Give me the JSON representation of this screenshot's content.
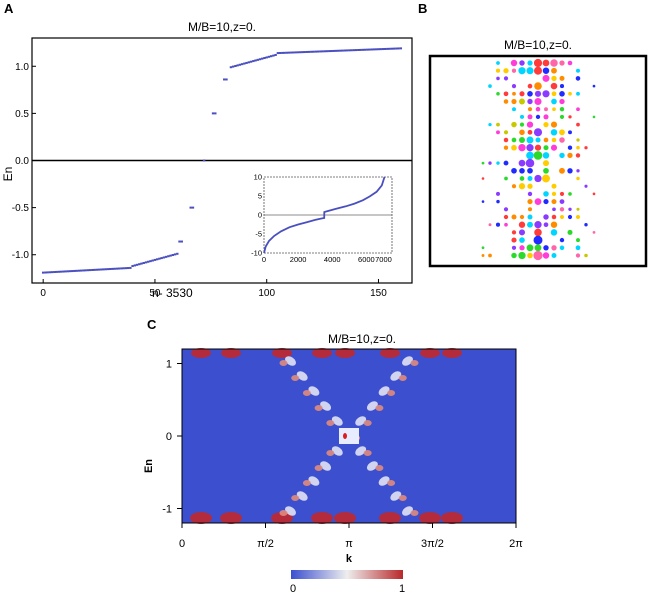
{
  "panels": {
    "a": {
      "letter": "A"
    },
    "b": {
      "letter": "B"
    },
    "c": {
      "letter": "C"
    }
  },
  "chart_data": [
    {
      "id": "A",
      "type": "scatter",
      "title": "M/B=10,z=0.",
      "xlabel": "n- 3530",
      "ylabel": "En",
      "xlim": [
        -5,
        165
      ],
      "ylim": [
        -1.3,
        1.3
      ],
      "xticks": [
        "0",
        "50",
        "100",
        "150"
      ],
      "xtick_values": [
        0,
        50,
        100,
        150
      ],
      "yticks": [
        "1.0",
        "0.5",
        "0.0",
        "-0.5",
        "-1.0"
      ],
      "ytick_values": [
        1.0,
        0.5,
        0.0,
        -0.5,
        -1.0
      ],
      "reference_line_y": 0,
      "marker_color": "#4a4fbf",
      "segments": [
        {
          "x_start": 0,
          "x_end": 39,
          "y_start": -1.19,
          "y_end": -1.14
        },
        {
          "x_start": 40,
          "x_end": 60,
          "y_start": -1.12,
          "y_end": -0.99
        },
        {
          "x_start": 61,
          "x_end": 62,
          "y_start": -0.86,
          "y_end": -0.86
        },
        {
          "x_start": 66,
          "x_end": 67,
          "y_start": -0.5,
          "y_end": -0.5
        },
        {
          "x_start": 72,
          "x_end": 72,
          "y_start": 0.0,
          "y_end": 0.0
        },
        {
          "x_start": 76,
          "x_end": 77,
          "y_start": 0.5,
          "y_end": 0.5
        },
        {
          "x_start": 81,
          "x_end": 82,
          "y_start": 0.86,
          "y_end": 0.86
        },
        {
          "x_start": 84,
          "x_end": 104,
          "y_start": 0.99,
          "y_end": 1.12
        },
        {
          "x_start": 105,
          "x_end": 160,
          "y_start": 1.14,
          "y_end": 1.19
        }
      ],
      "inset": {
        "type": "line",
        "xlim": [
          0,
          7500
        ],
        "ylim": [
          -10,
          10
        ],
        "xticks": [
          "0",
          "2000",
          "4000",
          "6000",
          "7000"
        ],
        "xtick_values": [
          0,
          2000,
          4000,
          6000,
          7000
        ],
        "yticks": [
          "10",
          "5",
          "0",
          "-5",
          "-10"
        ],
        "ytick_values": [
          10,
          5,
          0,
          -5,
          -10
        ],
        "reference_line_y": 0,
        "x": [
          0,
          100,
          300,
          600,
          1000,
          1500,
          2000,
          2500,
          3000,
          3400,
          3530,
          3531,
          3700,
          4200,
          4800,
          5300,
          5800,
          6200,
          6600,
          6900,
          7060
        ],
        "y": [
          -10,
          -8.3,
          -6.8,
          -5.5,
          -4.3,
          -3.2,
          -2.5,
          -1.9,
          -1.3,
          -0.9,
          -0.8,
          0.8,
          1.0,
          1.6,
          2.3,
          3.0,
          3.9,
          4.9,
          6.1,
          7.8,
          10
        ]
      }
    },
    {
      "id": "B",
      "type": "scatter",
      "title": "M/B=10,z=0."
    },
    {
      "id": "C",
      "type": "heatmap",
      "title": "M/B=10,z=0.",
      "xlabel": "k",
      "ylabel": "En",
      "xticks": [
        "0",
        "π/2",
        "π",
        "3π/2",
        "2π"
      ],
      "xtick_values": [
        0,
        1.5708,
        3.1416,
        4.7124,
        6.2832
      ],
      "xlim": [
        0,
        6.2832
      ],
      "yticks": [
        "1",
        "0",
        "-1"
      ],
      "ytick_values": [
        1,
        0,
        -1
      ],
      "ylim": [
        -1.2,
        1.2
      ],
      "colorbar": {
        "min": 0,
        "max": 1,
        "min_label": "0",
        "max_label": "1"
      }
    }
  ]
}
